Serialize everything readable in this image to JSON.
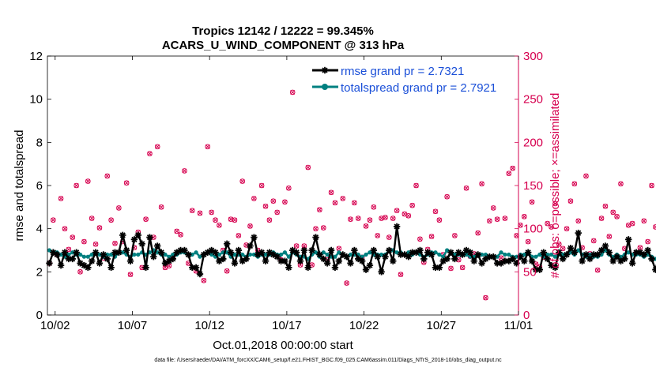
{
  "chart_data": {
    "type": "line",
    "title_line1": "Tropics 12142 / 12222 = 99.345%",
    "title_line2": "ACARS_U_WIND_COMPONENT @ 313 hPa",
    "xlabel": "Oct.01,2018 00:00:00 start",
    "ylabel_left": "rmse and totalspread",
    "ylabel_right": "# of obs: o=possible; ×=assimilated",
    "footer": "data file: /Users/raeder/DAI/ATM_forcXX/CAM6_setup/f.e21.FHIST_BGC.f09_025.CAM6assim.011/Diags_NTrS_2018-10/obs_diag_output.nc",
    "x_range": [
      1.5,
      32
    ],
    "ylim_left": [
      0,
      12
    ],
    "ylim_right": [
      0,
      300
    ],
    "x_tick_positions": [
      2,
      7,
      12,
      17,
      22,
      27,
      32
    ],
    "x_tick_labels": [
      "10/02",
      "10/07",
      "10/12",
      "10/17",
      "10/22",
      "10/27",
      "11/01"
    ],
    "y_left_ticks": [
      0,
      2,
      4,
      6,
      8,
      10,
      12
    ],
    "y_right_ticks": [
      0,
      50,
      100,
      150,
      200,
      250,
      300
    ],
    "legend": {
      "position": "top-right",
      "entries": [
        "rmse grand pr = 2.7321",
        "totalspread grand pr = 2.7921"
      ]
    },
    "colors": {
      "rmse": "#000000",
      "totalspread": "#008080",
      "obs": "#d6004f",
      "right_axis": "#d6004f",
      "legend_text": "#1a4fd8"
    },
    "grid": false,
    "step_days": 0.25,
    "series": [
      {
        "name": "rmse grand pr = 2.7321",
        "axis": "left",
        "values": [
          2.4,
          2.9,
          2.8,
          2.3,
          2.9,
          2.6,
          2.6,
          2.9,
          2.4,
          2.3,
          2.2,
          2.5,
          2.9,
          2.4,
          2.8,
          2.6,
          2.2,
          2.9,
          2.9,
          3.7,
          3.0,
          2.5,
          3.5,
          3.7,
          3.3,
          2.2,
          3.6,
          2.7,
          3.2,
          2.9,
          2.4,
          2.5,
          2.6,
          2.9,
          3.0,
          3.0,
          2.8,
          2.2,
          2.2,
          1.9,
          2.8,
          2.9,
          3.0,
          2.9,
          2.5,
          2.6,
          3.3,
          2.9,
          2.4,
          3.0,
          2.5,
          2.6,
          3.2,
          3.6,
          2.8,
          2.9,
          2.5,
          2.9,
          2.8,
          2.7,
          2.5,
          2.5,
          2.2,
          3.0,
          2.9,
          2.5,
          3.0,
          2.2,
          3.0,
          3.6,
          2.8,
          2.6,
          2.4,
          3.0,
          2.2,
          2.5,
          2.8,
          2.7,
          2.4,
          3.0,
          2.6,
          2.5,
          2.1,
          2.3,
          3.0,
          2.7,
          2.0,
          2.7,
          3.0,
          2.5,
          4.1,
          2.8,
          2.8,
          2.7,
          2.9,
          2.9,
          3.0,
          2.6,
          2.9,
          2.8,
          2.2,
          2.2,
          2.5,
          2.6,
          2.9,
          2.6,
          2.9,
          2.8,
          3.0,
          2.9,
          2.5,
          2.8,
          2.4,
          2.6,
          2.7,
          2.7,
          2.4,
          2.4,
          2.5,
          2.5,
          2.6,
          2.4,
          2.7,
          2.5,
          2.9,
          2.5,
          2.1,
          2.1,
          2.9,
          2.6,
          2.3,
          2.2,
          2.9,
          2.6,
          2.8,
          3.1,
          2.9,
          3.8,
          2.5,
          2.8,
          2.6,
          2.8,
          2.8,
          3.0,
          3.2,
          2.9,
          2.5,
          2.7,
          2.5,
          2.6,
          3.5,
          2.4,
          2.9,
          2.9,
          2.8,
          3.0,
          2.6,
          2.1,
          2.8,
          2.3,
          2.8,
          2.4,
          3.1,
          2.5,
          2.0,
          2.5,
          2.2,
          2.3,
          2.4,
          2.3,
          2.7,
          3.2,
          3.8,
          2.4,
          2.3,
          2.6,
          2.1,
          3.8,
          2.7,
          2.2,
          2.7,
          2.8
        ]
      },
      {
        "name": "totalspread grand pr = 2.7921",
        "axis": "left",
        "values": [
          3.0,
          2.9,
          2.9,
          2.8,
          2.7,
          2.8,
          2.9,
          2.8,
          2.8,
          2.7,
          2.7,
          2.8,
          2.9,
          2.8,
          2.7,
          2.8,
          2.8,
          2.7,
          2.9,
          2.9,
          2.8,
          2.7,
          2.8,
          2.8,
          2.9,
          2.8,
          2.9,
          3.0,
          2.9,
          2.8,
          2.8,
          2.7,
          2.8,
          2.8,
          2.9,
          2.9,
          2.8,
          2.8,
          2.9,
          2.7,
          2.8,
          2.9,
          2.8,
          2.7,
          2.8,
          2.9,
          2.9,
          2.7,
          2.8,
          2.8,
          2.8,
          2.7,
          2.8,
          2.8,
          2.7,
          2.8,
          2.8,
          2.8,
          2.9,
          2.8,
          2.8,
          2.9,
          2.7,
          2.9,
          2.8,
          2.7,
          2.7,
          2.6,
          2.8,
          2.9,
          2.7,
          2.9,
          2.8,
          2.7,
          2.7,
          2.9,
          2.8,
          2.7,
          2.8,
          2.8,
          2.8,
          2.7,
          2.8,
          2.9,
          2.8,
          2.8,
          2.8,
          2.8,
          3.0,
          3.0,
          2.9,
          2.9,
          2.8,
          2.9,
          2.8,
          2.9,
          2.8,
          2.7,
          2.8,
          2.9,
          2.9,
          2.8,
          2.7,
          3.0,
          2.9,
          2.8,
          2.8,
          2.8,
          2.8,
          2.7,
          2.7,
          2.8,
          2.8,
          2.8,
          2.7,
          2.7,
          2.7,
          2.9,
          2.8,
          2.8,
          2.7,
          2.7,
          2.8,
          2.8,
          2.9,
          2.7,
          2.7,
          2.8,
          2.7,
          2.8,
          2.8,
          2.7,
          2.8,
          2.8,
          2.8,
          2.9,
          2.8,
          3.0,
          2.8,
          2.7,
          2.8,
          2.7,
          2.7,
          2.8,
          3.0,
          2.8,
          2.7,
          2.8,
          2.7,
          2.8,
          2.9,
          2.8,
          2.8,
          2.8,
          2.7,
          2.8,
          2.7,
          2.6,
          2.8,
          2.7,
          2.8,
          2.6,
          2.8,
          2.7,
          2.6,
          2.6,
          2.6,
          2.6,
          2.7,
          2.6,
          2.6,
          2.6,
          2.7,
          2.8,
          2.6,
          2.6,
          2.6,
          2.6,
          2.6,
          2.6,
          3.4,
          2.6
        ]
      },
      {
        "name": "# of obs possible",
        "axis": "right",
        "marker": "circle",
        "values": [
          60,
          110,
          70,
          135,
          100,
          76,
          90,
          150,
          50,
          85,
          155,
          112,
          82,
          101,
          66,
          161,
          110,
          83,
          124,
          85,
          153,
          47,
          78,
          96,
          55,
          111,
          187,
          90,
          195,
          125,
          55,
          57,
          67,
          97,
          93,
          167,
          60,
          121,
          51,
          118,
          40,
          195,
          119,
          110,
          104,
          75,
          51,
          111,
          110,
          92,
          155,
          81,
          103,
          135,
          75,
          150,
          126,
          110,
          132,
          119,
          64,
          131,
          147,
          258,
          80,
          58,
          80,
          171,
          58,
          100,
          122,
          101,
          64,
          142,
          130,
          77,
          135,
          37,
          111,
          130,
          112,
          67,
          103,
          110,
          125,
          92,
          112,
          113,
          90,
          112,
          121,
          47,
          117,
          115,
          127,
          150,
          88,
          61,
          76,
          91,
          120,
          110,
          70,
          137,
          54,
          92,
          64,
          55,
          147,
          68,
          71,
          95,
          152,
          20,
          109,
          124,
          111,
          66,
          112,
          164,
          170,
          92,
          104,
          114,
          85,
          131,
          59,
          56,
          67,
          106,
          102,
          129,
          82,
          77,
          100,
          132,
          152,
          109,
          78,
          161,
          71,
          86,
          52,
          112,
          126,
          91,
          119,
          114,
          152,
          77,
          104,
          106,
          72,
          78,
          109,
          85,
          150,
          102,
          189,
          101,
          122,
          80,
          127,
          194,
          105,
          81,
          99,
          176,
          65,
          59,
          118,
          68,
          82,
          99,
          102,
          110,
          155,
          105,
          70,
          95,
          147,
          135,
          75,
          52,
          113,
          2,
          150,
          90
        ]
      },
      {
        "name": "# of obs assimilated",
        "axis": "right",
        "marker": "x",
        "values": [
          60,
          110,
          70,
          135,
          100,
          76,
          90,
          150,
          50,
          85,
          155,
          112,
          82,
          101,
          66,
          161,
          110,
          83,
          124,
          85,
          153,
          47,
          78,
          96,
          55,
          111,
          187,
          90,
          195,
          125,
          55,
          57,
          67,
          97,
          93,
          167,
          60,
          121,
          51,
          118,
          40,
          195,
          119,
          110,
          104,
          75,
          51,
          111,
          110,
          92,
          155,
          81,
          103,
          135,
          75,
          150,
          126,
          110,
          132,
          119,
          64,
          131,
          147,
          258,
          80,
          58,
          80,
          171,
          58,
          100,
          122,
          101,
          64,
          142,
          130,
          77,
          135,
          37,
          111,
          130,
          112,
          67,
          103,
          110,
          125,
          92,
          112,
          113,
          90,
          112,
          121,
          47,
          117,
          115,
          127,
          150,
          88,
          61,
          76,
          91,
          120,
          110,
          70,
          137,
          54,
          92,
          64,
          55,
          147,
          68,
          71,
          95,
          152,
          20,
          109,
          124,
          111,
          66,
          112,
          164,
          170,
          92,
          104,
          114,
          85,
          131,
          59,
          56,
          67,
          106,
          102,
          129,
          82,
          77,
          100,
          132,
          152,
          109,
          78,
          161,
          71,
          86,
          52,
          112,
          126,
          91,
          119,
          114,
          152,
          77,
          104,
          106,
          72,
          78,
          109,
          85,
          150,
          102,
          189,
          101,
          122,
          80,
          127,
          194,
          105,
          81,
          99,
          176,
          65,
          59,
          118,
          68,
          82,
          99,
          102,
          110,
          155,
          105,
          70,
          95,
          147,
          135,
          75,
          52,
          113,
          2,
          150,
          90
        ]
      }
    ]
  }
}
